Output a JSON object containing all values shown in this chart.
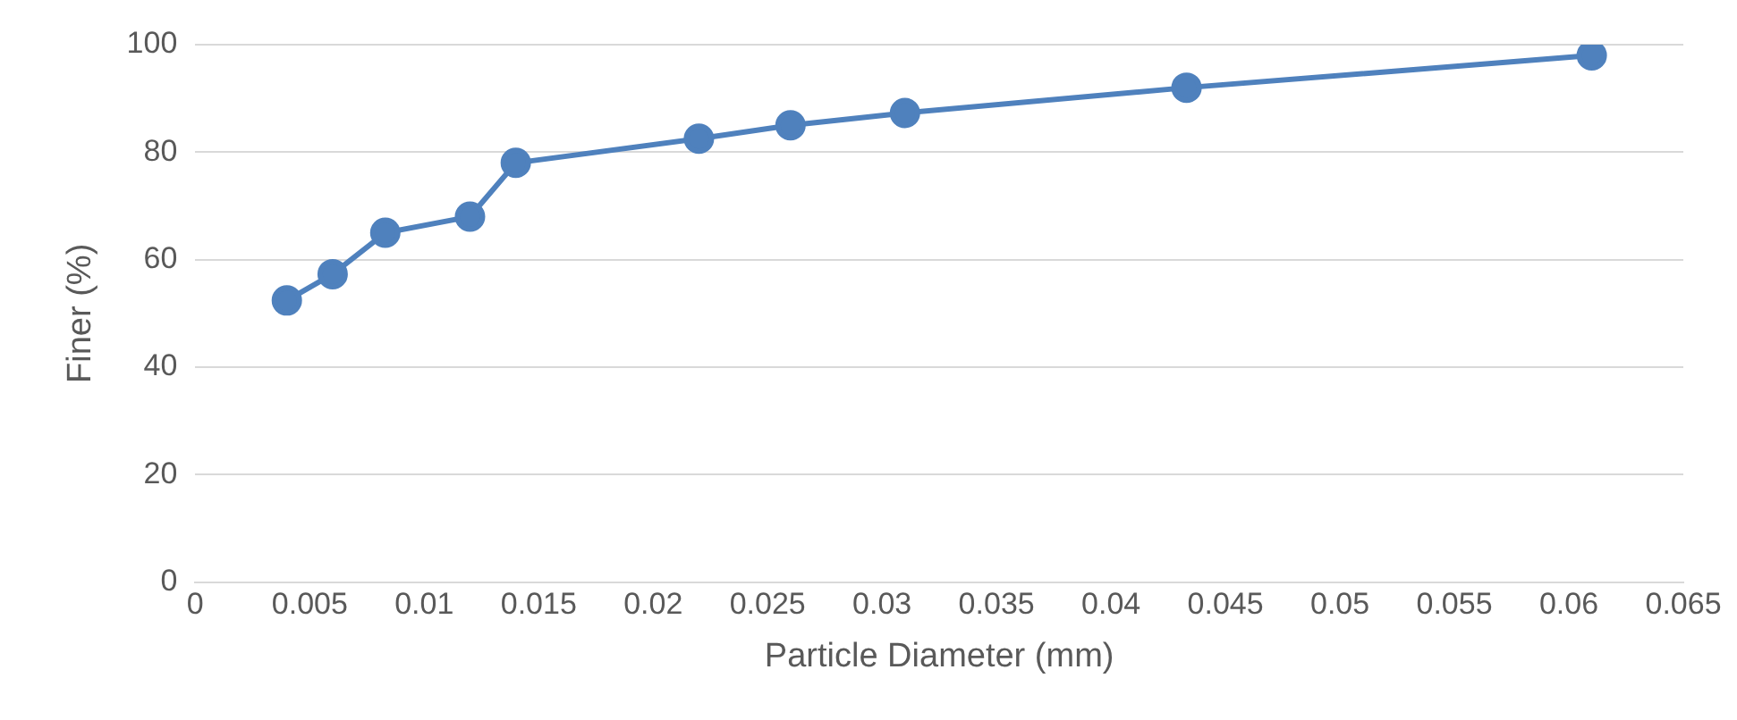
{
  "chart_data": {
    "type": "line",
    "xlabel": "Particle Diameter (mm)",
    "ylabel": "Finer (%)",
    "x": [
      0.004,
      0.006,
      0.0083,
      0.012,
      0.014,
      0.022,
      0.026,
      0.031,
      0.0433,
      0.061
    ],
    "series": [
      {
        "color": "#4f81bd",
        "values": [
          52.4,
          57.3,
          65,
          68,
          78,
          82.5,
          85,
          87.3,
          92,
          98
        ]
      }
    ],
    "xlim": [
      0,
      0.065
    ],
    "xticks": [
      0,
      0.005,
      0.01,
      0.015,
      0.02,
      0.025,
      0.03,
      0.035,
      0.04,
      0.045,
      0.05,
      0.055,
      0.06,
      0.065
    ],
    "ylim": [
      0,
      100
    ],
    "yticks": [
      0,
      20,
      40,
      60,
      80,
      100
    ],
    "grid": "y",
    "marker": "circle",
    "line_style": "solid",
    "legend": false
  }
}
